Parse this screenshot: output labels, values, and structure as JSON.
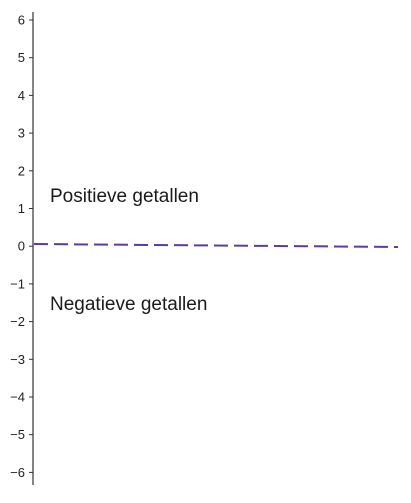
{
  "labels": {
    "positive": "Positieve getallen",
    "negative": "Negatieve getallen"
  },
  "axis": {
    "ticks": [
      "6",
      "5",
      "4",
      "3",
      "2",
      "1",
      "0",
      "−1",
      "−2",
      "−3",
      "−4",
      "−5",
      "−6"
    ]
  },
  "colors": {
    "axis": "#333333",
    "zero_line": "#5b3aa8",
    "text": "#1a1a1a"
  }
}
